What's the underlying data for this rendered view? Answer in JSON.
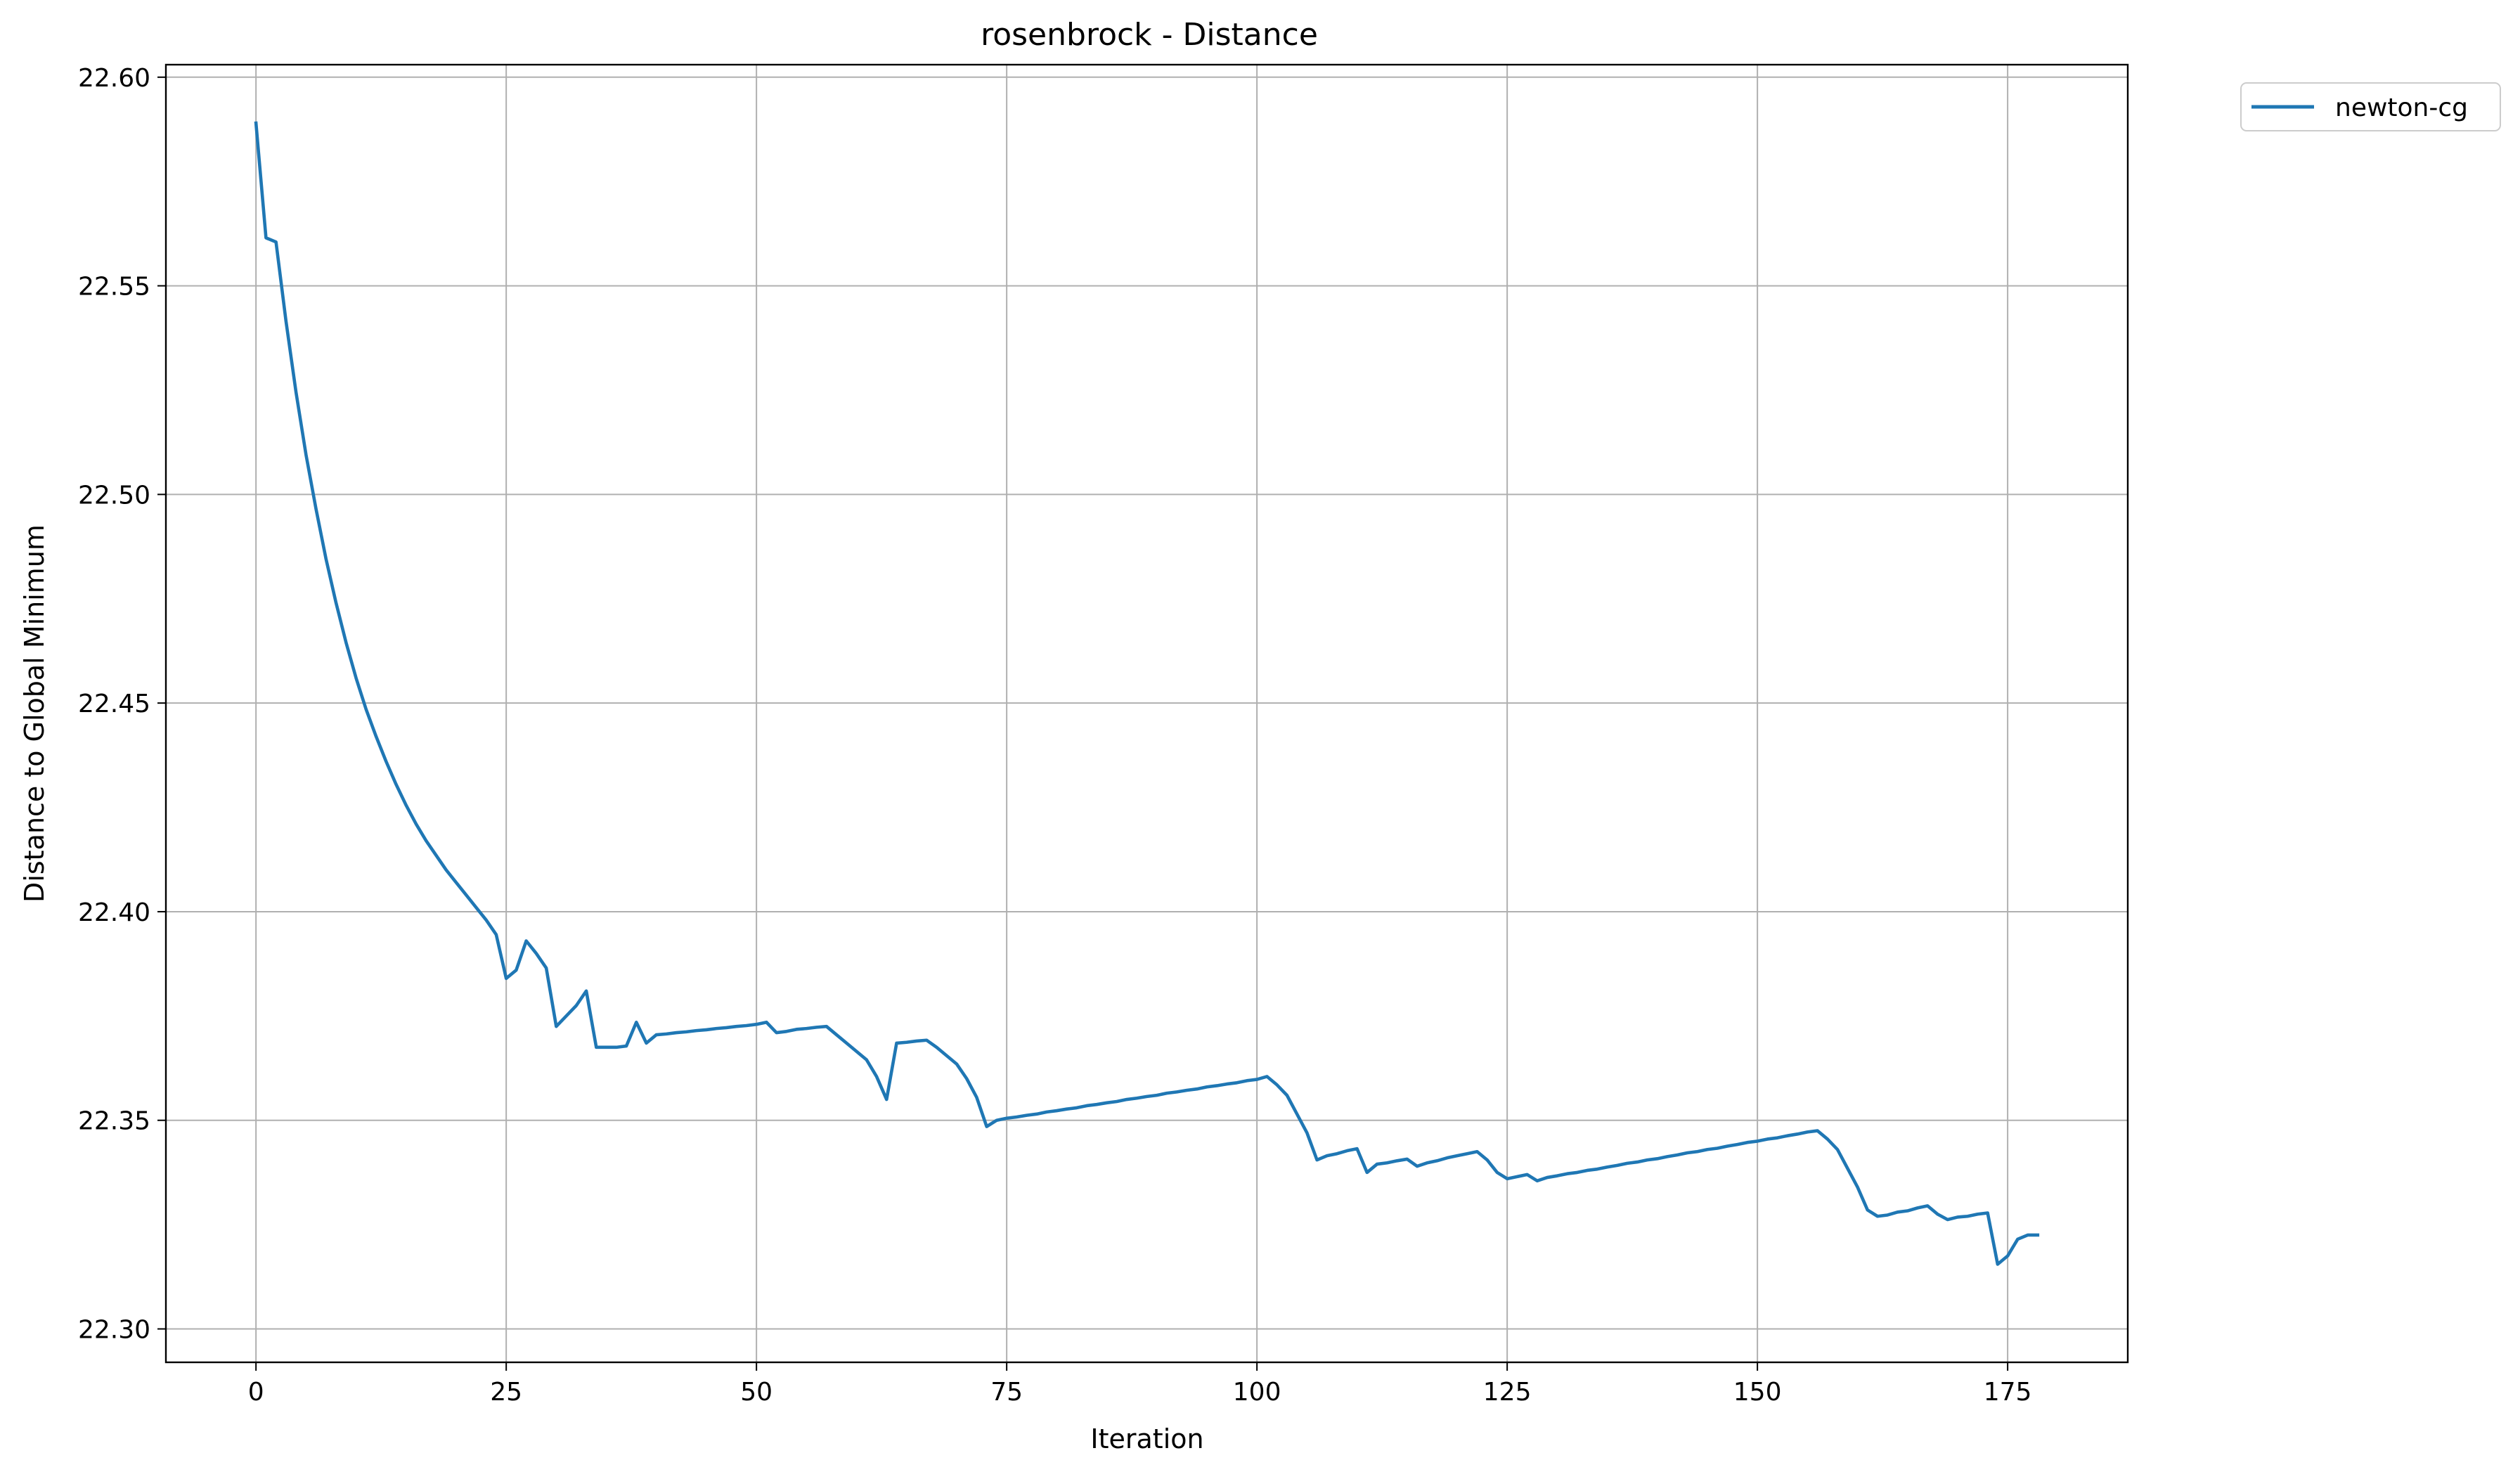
{
  "chart_data": {
    "type": "line",
    "title": "rosenbrock - Distance",
    "xlabel": "Iteration",
    "ylabel": "Distance to Global Minimum",
    "xlim": [
      -9,
      187
    ],
    "ylim": [
      22.292,
      22.603
    ],
    "xticks": [
      0,
      25,
      50,
      75,
      100,
      125,
      150,
      175
    ],
    "xtick_labels": [
      "0",
      "25",
      "50",
      "75",
      "100",
      "125",
      "150",
      "175"
    ],
    "yticks": [
      22.3,
      22.35,
      22.4,
      22.45,
      22.5,
      22.55,
      22.6
    ],
    "ytick_labels": [
      "22.30",
      "22.35",
      "22.40",
      "22.45",
      "22.50",
      "22.55",
      "22.60"
    ],
    "grid": true,
    "legend_position": "outside upper right",
    "series": [
      {
        "name": "newton-cg",
        "color": "#1f77b4",
        "points": [
          [
            0,
            22.589
          ],
          [
            1,
            22.5615
          ],
          [
            2,
            22.5605
          ],
          [
            3,
            22.5415
          ],
          [
            4,
            22.5245
          ],
          [
            5,
            22.5095
          ],
          [
            6,
            22.4965
          ],
          [
            7,
            22.4845
          ],
          [
            8,
            22.474
          ],
          [
            9,
            22.4645
          ],
          [
            10,
            22.456
          ],
          [
            11,
            22.4485
          ],
          [
            12,
            22.442
          ],
          [
            13,
            22.436
          ],
          [
            14,
            22.4305
          ],
          [
            15,
            22.4255
          ],
          [
            16,
            22.421
          ],
          [
            17,
            22.417
          ],
          [
            18,
            22.4135
          ],
          [
            19,
            22.41
          ],
          [
            20,
            22.407
          ],
          [
            21,
            22.404
          ],
          [
            22,
            22.401
          ],
          [
            23,
            22.398
          ],
          [
            24,
            22.3945
          ],
          [
            25,
            22.384
          ],
          [
            26,
            22.386
          ],
          [
            27,
            22.393
          ],
          [
            28,
            22.39
          ],
          [
            29,
            22.3865
          ],
          [
            30,
            22.3725
          ],
          [
            31,
            22.375
          ],
          [
            32,
            22.3775
          ],
          [
            33,
            22.381
          ],
          [
            34,
            22.3675
          ],
          [
            35,
            22.3675
          ],
          [
            36,
            22.3675
          ],
          [
            37,
            22.3678
          ],
          [
            38,
            22.3735
          ],
          [
            39,
            22.3685
          ],
          [
            40,
            22.3705
          ],
          [
            41,
            22.3707
          ],
          [
            42,
            22.371
          ],
          [
            43,
            22.3712
          ],
          [
            44,
            22.3715
          ],
          [
            45,
            22.3717
          ],
          [
            46,
            22.372
          ],
          [
            47,
            22.3722
          ],
          [
            48,
            22.3725
          ],
          [
            49,
            22.3727
          ],
          [
            50,
            22.373
          ],
          [
            51,
            22.3735
          ],
          [
            52,
            22.371
          ],
          [
            53,
            22.3713
          ],
          [
            54,
            22.3718
          ],
          [
            55,
            22.372
          ],
          [
            56,
            22.3723
          ],
          [
            57,
            22.3725
          ],
          [
            58,
            22.3705
          ],
          [
            59,
            22.3685
          ],
          [
            60,
            22.3665
          ],
          [
            61,
            22.3645
          ],
          [
            62,
            22.3605
          ],
          [
            63,
            22.355
          ],
          [
            64,
            22.3685
          ],
          [
            65,
            22.3687
          ],
          [
            66,
            22.369
          ],
          [
            67,
            22.3692
          ],
          [
            68,
            22.3675
          ],
          [
            69,
            22.3655
          ],
          [
            70,
            22.3635
          ],
          [
            71,
            22.36
          ],
          [
            72,
            22.3555
          ],
          [
            73,
            22.3485
          ],
          [
            74,
            22.35
          ],
          [
            75,
            22.3505
          ],
          [
            76,
            22.3508
          ],
          [
            77,
            22.3512
          ],
          [
            78,
            22.3515
          ],
          [
            79,
            22.352
          ],
          [
            80,
            22.3523
          ],
          [
            81,
            22.3527
          ],
          [
            82,
            22.353
          ],
          [
            83,
            22.3535
          ],
          [
            84,
            22.3538
          ],
          [
            85,
            22.3542
          ],
          [
            86,
            22.3545
          ],
          [
            87,
            22.355
          ],
          [
            88,
            22.3553
          ],
          [
            89,
            22.3557
          ],
          [
            90,
            22.356
          ],
          [
            91,
            22.3565
          ],
          [
            92,
            22.3568
          ],
          [
            93,
            22.3572
          ],
          [
            94,
            22.3575
          ],
          [
            95,
            22.358
          ],
          [
            96,
            22.3583
          ],
          [
            97,
            22.3587
          ],
          [
            98,
            22.359
          ],
          [
            99,
            22.3595
          ],
          [
            100,
            22.3598
          ],
          [
            101,
            22.3605
          ],
          [
            102,
            22.3585
          ],
          [
            103,
            22.356
          ],
          [
            104,
            22.3515
          ],
          [
            105,
            22.347
          ],
          [
            106,
            22.3405
          ],
          [
            107,
            22.3415
          ],
          [
            108,
            22.342
          ],
          [
            109,
            22.3427
          ],
          [
            110,
            22.3432
          ],
          [
            111,
            22.3375
          ],
          [
            112,
            22.3395
          ],
          [
            113,
            22.3398
          ],
          [
            114,
            22.3403
          ],
          [
            115,
            22.3407
          ],
          [
            116,
            22.339
          ],
          [
            117,
            22.3398
          ],
          [
            118,
            22.3403
          ],
          [
            119,
            22.341
          ],
          [
            120,
            22.3415
          ],
          [
            121,
            22.342
          ],
          [
            122,
            22.3425
          ],
          [
            123,
            22.3405
          ],
          [
            124,
            22.3375
          ],
          [
            125,
            22.336
          ],
          [
            126,
            22.3365
          ],
          [
            127,
            22.337
          ],
          [
            128,
            22.3355
          ],
          [
            129,
            22.3363
          ],
          [
            130,
            22.3367
          ],
          [
            131,
            22.3372
          ],
          [
            132,
            22.3375
          ],
          [
            133,
            22.338
          ],
          [
            134,
            22.3383
          ],
          [
            135,
            22.3388
          ],
          [
            136,
            22.3392
          ],
          [
            137,
            22.3397
          ],
          [
            138,
            22.34
          ],
          [
            139,
            22.3405
          ],
          [
            140,
            22.3408
          ],
          [
            141,
            22.3413
          ],
          [
            142,
            22.3417
          ],
          [
            143,
            22.3422
          ],
          [
            144,
            22.3425
          ],
          [
            145,
            22.343
          ],
          [
            146,
            22.3433
          ],
          [
            147,
            22.3438
          ],
          [
            148,
            22.3442
          ],
          [
            149,
            22.3447
          ],
          [
            150,
            22.345
          ],
          [
            151,
            22.3455
          ],
          [
            152,
            22.3458
          ],
          [
            153,
            22.3463
          ],
          [
            154,
            22.3467
          ],
          [
            155,
            22.3472
          ],
          [
            156,
            22.3475
          ],
          [
            157,
            22.3455
          ],
          [
            158,
            22.343
          ],
          [
            159,
            22.3385
          ],
          [
            160,
            22.334
          ],
          [
            161,
            22.3285
          ],
          [
            162,
            22.327
          ],
          [
            163,
            22.3273
          ],
          [
            164,
            22.328
          ],
          [
            165,
            22.3283
          ],
          [
            166,
            22.329
          ],
          [
            167,
            22.3295
          ],
          [
            168,
            22.3275
          ],
          [
            169,
            22.3262
          ],
          [
            170,
            22.3268
          ],
          [
            171,
            22.327
          ],
          [
            172,
            22.3275
          ],
          [
            173,
            22.3278
          ],
          [
            174,
            22.3155
          ],
          [
            175,
            22.3175
          ],
          [
            176,
            22.3215
          ],
          [
            177,
            22.3225
          ],
          [
            178,
            22.3225
          ]
        ]
      }
    ]
  }
}
